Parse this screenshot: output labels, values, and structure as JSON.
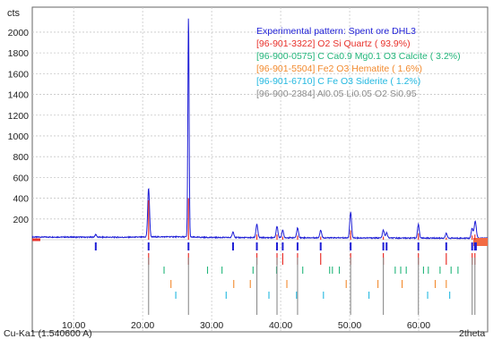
{
  "chart_data": {
    "type": "line",
    "ylabel": "cts",
    "xlabel": "2theta",
    "radiation_label": "Cu-Ka1 (1.540600 A)",
    "xlim": [
      4,
      70
    ],
    "ylim": [
      0,
      2120
    ],
    "yticks": [
      200,
      400,
      600,
      800,
      1000,
      1200,
      1400,
      1600,
      1800,
      2000
    ],
    "yticklabels": [
      "200",
      "400",
      "600",
      "800",
      "1000",
      "1200",
      "1400",
      "1600",
      "1800",
      "2000"
    ],
    "xticks": [
      10,
      20,
      30,
      40,
      50,
      60
    ],
    "xticklabels": [
      "10.00",
      "20.00",
      "30.00",
      "40.00",
      "50.00",
      "60.00"
    ],
    "grid": true,
    "legend_position": "top-right",
    "series": [
      {
        "name": "Experimental pattern: Spent ore DHL3",
        "color": "#1f1fd6",
        "peaks": [
          {
            "x": 13.2,
            "y": 25
          },
          {
            "x": 20.86,
            "y": 470
          },
          {
            "x": 26.64,
            "y": 2120
          },
          {
            "x": 33.1,
            "y": 55
          },
          {
            "x": 36.55,
            "y": 130
          },
          {
            "x": 39.47,
            "y": 110
          },
          {
            "x": 40.3,
            "y": 70
          },
          {
            "x": 42.45,
            "y": 95
          },
          {
            "x": 45.8,
            "y": 75
          },
          {
            "x": 50.14,
            "y": 250
          },
          {
            "x": 54.88,
            "y": 75
          },
          {
            "x": 55.35,
            "y": 50
          },
          {
            "x": 59.96,
            "y": 130
          },
          {
            "x": 64.0,
            "y": 45
          },
          {
            "x": 67.75,
            "y": 95
          },
          {
            "x": 68.15,
            "y": 120
          },
          {
            "x": 68.3,
            "y": 70
          }
        ]
      },
      {
        "name": "[96-901-3322] O2 Si  Quartz ( 93.9%)",
        "color": "#e8302a",
        "stick_heights": "medium",
        "peaks": [
          {
            "x": 20.86,
            "y": 380
          },
          {
            "x": 26.64,
            "y": 400
          },
          {
            "x": 36.55,
            "y": 50
          },
          {
            "x": 39.47,
            "y": 50
          },
          {
            "x": 40.3,
            "y": 30
          },
          {
            "x": 42.45,
            "y": 40
          },
          {
            "x": 45.8,
            "y": 30
          },
          {
            "x": 50.14,
            "y": 90
          },
          {
            "x": 54.88,
            "y": 30
          },
          {
            "x": 59.96,
            "y": 60
          },
          {
            "x": 64.0,
            "y": 20
          },
          {
            "x": 67.75,
            "y": 40
          },
          {
            "x": 68.15,
            "y": 50
          }
        ]
      },
      {
        "name": "[96-900-0575] C Ca0.9 Mg0.1 O3  Calcite ( 3.2%)",
        "color": "#22b57a",
        "peaks": [
          {
            "x": 23.1
          },
          {
            "x": 29.4
          },
          {
            "x": 31.5
          },
          {
            "x": 36.0
          },
          {
            "x": 39.4
          },
          {
            "x": 43.2
          },
          {
            "x": 47.1
          },
          {
            "x": 47.5
          },
          {
            "x": 48.5
          },
          {
            "x": 56.6
          },
          {
            "x": 57.4
          },
          {
            "x": 58.2
          },
          {
            "x": 60.7
          },
          {
            "x": 61.4
          },
          {
            "x": 63.1
          },
          {
            "x": 64.7
          },
          {
            "x": 65.7
          }
        ]
      },
      {
        "name": "[96-901-5504] Fe2 O3  Hematite ( 1.6%)",
        "color": "#f28a2e",
        "peaks": [
          {
            "x": 24.1
          },
          {
            "x": 33.2
          },
          {
            "x": 35.6
          },
          {
            "x": 40.9
          },
          {
            "x": 49.5
          },
          {
            "x": 54.1
          },
          {
            "x": 57.6
          },
          {
            "x": 62.4
          },
          {
            "x": 64.0
          }
        ]
      },
      {
        "name": "[96-901-6710] C Fe O3  Siderite (  1.2%)",
        "color": "#22b8e0",
        "peaks": [
          {
            "x": 24.8
          },
          {
            "x": 32.1
          },
          {
            "x": 38.3
          },
          {
            "x": 42.3
          },
          {
            "x": 46.2
          },
          {
            "x": 52.8
          },
          {
            "x": 61.3
          },
          {
            "x": 64.5
          }
        ]
      },
      {
        "name": "[96-900-2384] Al0.05 Li0.05 O2 Si0.95",
        "color": "#8c8c8c",
        "peaks": [
          {
            "x": 20.86
          },
          {
            "x": 26.64
          },
          {
            "x": 36.55
          },
          {
            "x": 39.47
          },
          {
            "x": 42.45
          },
          {
            "x": 50.14
          },
          {
            "x": 54.88
          },
          {
            "x": 59.96
          },
          {
            "x": 67.75
          },
          {
            "x": 68.15
          }
        ]
      }
    ]
  }
}
